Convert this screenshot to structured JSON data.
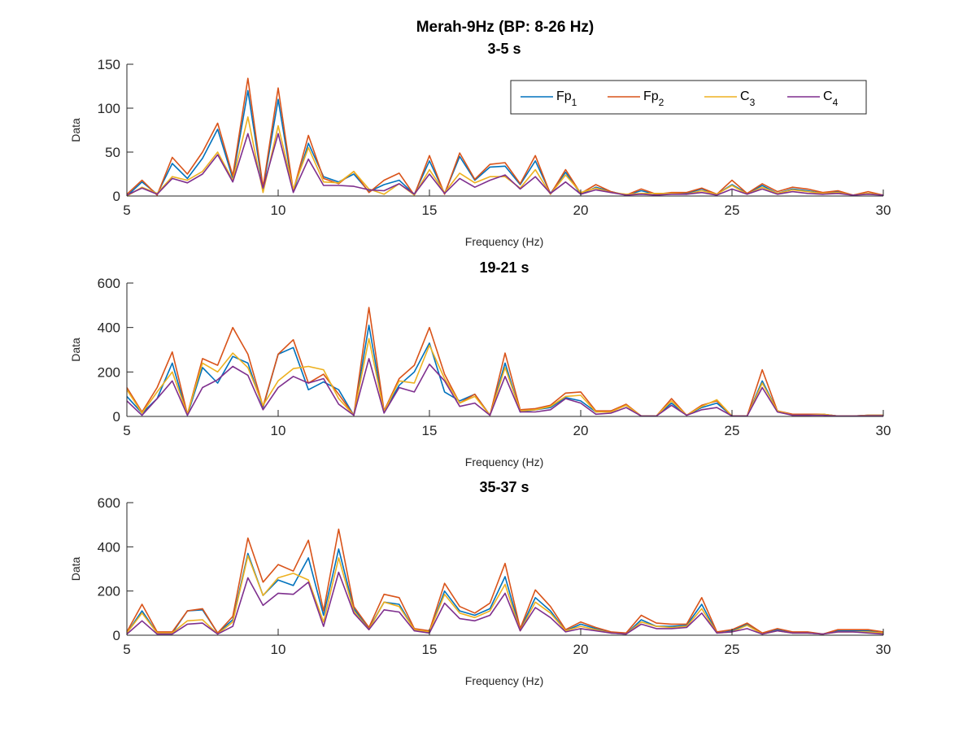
{
  "figure_title": "Merah-9Hz (BP: 8-26 Hz)",
  "legend": [
    {
      "base": "Fp",
      "sub": "1",
      "color": "#0072BD"
    },
    {
      "base": "Fp",
      "sub": "2",
      "color": "#D95319"
    },
    {
      "base": "C",
      "sub": "3",
      "color": "#EDB120"
    },
    {
      "base": "C",
      "sub": "4",
      "color": "#7E2F8E"
    }
  ],
  "legend_position": "top-right of first panel",
  "chart_data": [
    {
      "type": "line",
      "title": "3-5 s",
      "xlabel": "Frequency (Hz)",
      "ylabel": "Data",
      "xlim": [
        5,
        30
      ],
      "ylim": [
        0,
        150
      ],
      "xticks": [
        5,
        10,
        15,
        20,
        25,
        30
      ],
      "yticks": [
        0,
        50,
        100,
        150
      ],
      "grid": false,
      "x": [
        5,
        5.5,
        6,
        6.5,
        7,
        7.5,
        8,
        8.5,
        9,
        9.5,
        10,
        10.5,
        11,
        11.5,
        12,
        12.5,
        13,
        13.5,
        14,
        14.5,
        15,
        15.5,
        16,
        16.5,
        17,
        17.5,
        18,
        18.5,
        19,
        19.5,
        20,
        20.5,
        21,
        21.5,
        22,
        22.5,
        23,
        23.5,
        24,
        24.5,
        25,
        25.5,
        26,
        26.5,
        27,
        27.5,
        28,
        28.5,
        29,
        29.5,
        30
      ],
      "series": [
        {
          "name": "Fp1",
          "values": [
            0,
            16,
            2,
            37,
            20,
            43,
            76,
            20,
            120,
            8,
            110,
            5,
            60,
            22,
            16,
            25,
            5,
            13,
            18,
            2,
            40,
            3,
            45,
            18,
            33,
            34,
            13,
            40,
            3,
            27,
            2,
            10,
            5,
            1,
            6,
            2,
            3,
            3,
            8,
            2,
            13,
            3,
            12,
            3,
            8,
            6,
            3,
            5,
            1,
            3,
            1
          ]
        },
        {
          "name": "Fp2",
          "values": [
            2,
            18,
            1,
            44,
            25,
            50,
            83,
            23,
            134,
            10,
            123,
            6,
            69,
            20,
            14,
            28,
            4,
            18,
            26,
            1,
            46,
            2,
            49,
            19,
            36,
            38,
            14,
            46,
            2,
            30,
            3,
            13,
            5,
            1,
            8,
            2,
            4,
            4,
            9,
            2,
            18,
            3,
            14,
            5,
            10,
            8,
            4,
            6,
            1,
            5,
            1
          ]
        },
        {
          "name": "C3",
          "values": [
            0,
            10,
            3,
            22,
            18,
            28,
            50,
            18,
            90,
            4,
            80,
            8,
            55,
            16,
            15,
            28,
            8,
            2,
            14,
            1,
            30,
            4,
            26,
            15,
            22,
            22,
            9,
            30,
            2,
            24,
            4,
            9,
            4,
            2,
            3,
            3,
            3,
            2,
            6,
            2,
            12,
            2,
            10,
            3,
            7,
            5,
            3,
            4,
            1,
            3,
            1
          ]
        },
        {
          "name": "C4",
          "values": [
            1,
            9,
            2,
            20,
            15,
            25,
            47,
            16,
            71,
            9,
            71,
            4,
            42,
            12,
            12,
            11,
            7,
            6,
            14,
            2,
            25,
            3,
            20,
            10,
            18,
            24,
            8,
            22,
            3,
            16,
            2,
            7,
            4,
            1,
            2,
            1,
            2,
            2,
            4,
            1,
            8,
            2,
            8,
            2,
            5,
            3,
            2,
            3,
            1,
            2,
            1
          ]
        }
      ]
    },
    {
      "type": "line",
      "title": "19-21 s",
      "xlabel": "Frequency (Hz)",
      "ylabel": "Data",
      "xlim": [
        5,
        30
      ],
      "ylim": [
        0,
        600
      ],
      "xticks": [
        5,
        10,
        15,
        20,
        25,
        30
      ],
      "yticks": [
        0,
        200,
        400,
        600
      ],
      "grid": false,
      "x": [
        5,
        5.5,
        6,
        6.5,
        7,
        7.5,
        8,
        8.5,
        9,
        9.5,
        10,
        10.5,
        11,
        11.5,
        12,
        12.5,
        13,
        13.5,
        14,
        14.5,
        15,
        15.5,
        16,
        16.5,
        17,
        17.5,
        18,
        18.5,
        19,
        19.5,
        20,
        20.5,
        21,
        21.5,
        22,
        22.5,
        23,
        23.5,
        24,
        24.5,
        25,
        25.5,
        26,
        26.5,
        27,
        27.5,
        28,
        28.5,
        29,
        29.5,
        30
      ],
      "series": [
        {
          "name": "Fp1",
          "values": [
            90,
            15,
            80,
            240,
            5,
            220,
            150,
            270,
            240,
            40,
            280,
            310,
            120,
            155,
            120,
            5,
            410,
            20,
            140,
            200,
            330,
            110,
            70,
            100,
            5,
            240,
            20,
            30,
            40,
            85,
            70,
            20,
            25,
            50,
            2,
            2,
            60,
            5,
            40,
            60,
            2,
            2,
            160,
            25,
            5,
            5,
            10,
            2,
            2,
            5,
            5
          ]
        },
        {
          "name": "Fp2",
          "values": [
            130,
            20,
            130,
            290,
            10,
            260,
            230,
            400,
            280,
            45,
            280,
            345,
            150,
            190,
            100,
            5,
            490,
            25,
            170,
            230,
            400,
            190,
            60,
            100,
            5,
            285,
            30,
            35,
            50,
            105,
            110,
            25,
            25,
            55,
            2,
            2,
            80,
            5,
            50,
            70,
            2,
            2,
            210,
            25,
            10,
            10,
            10,
            2,
            2,
            5,
            5
          ]
        },
        {
          "name": "C3",
          "values": [
            120,
            15,
            110,
            200,
            10,
            240,
            200,
            285,
            220,
            50,
            160,
            215,
            225,
            210,
            80,
            5,
            350,
            20,
            160,
            150,
            320,
            170,
            60,
            90,
            5,
            220,
            25,
            30,
            45,
            90,
            95,
            20,
            20,
            50,
            2,
            2,
            70,
            5,
            45,
            75,
            2,
            2,
            150,
            25,
            5,
            5,
            10,
            2,
            2,
            5,
            5
          ]
        },
        {
          "name": "C4",
          "values": [
            70,
            5,
            80,
            160,
            5,
            130,
            165,
            225,
            185,
            30,
            130,
            180,
            150,
            170,
            55,
            5,
            260,
            15,
            130,
            110,
            235,
            160,
            45,
            60,
            5,
            180,
            20,
            20,
            30,
            80,
            60,
            10,
            15,
            40,
            2,
            2,
            50,
            5,
            30,
            40,
            2,
            2,
            130,
            20,
            5,
            5,
            5,
            2,
            2,
            3,
            3
          ]
        }
      ]
    },
    {
      "type": "line",
      "title": "35-37 s",
      "xlabel": "Frequency (Hz)",
      "ylabel": "Data",
      "xlim": [
        5,
        30
      ],
      "ylim": [
        0,
        600
      ],
      "xticks": [
        5,
        10,
        15,
        20,
        25,
        30
      ],
      "yticks": [
        0,
        200,
        400,
        600
      ],
      "grid": false,
      "x": [
        5,
        5.5,
        6,
        6.5,
        7,
        7.5,
        8,
        8.5,
        9,
        9.5,
        10,
        10.5,
        11,
        11.5,
        12,
        12.5,
        13,
        13.5,
        14,
        14.5,
        15,
        15.5,
        16,
        16.5,
        17,
        17.5,
        18,
        18.5,
        19,
        19.5,
        20,
        20.5,
        21,
        21.5,
        22,
        22.5,
        23,
        23.5,
        24,
        24.5,
        25,
        25.5,
        26,
        26.5,
        27,
        27.5,
        28,
        28.5,
        29,
        29.5,
        30
      ],
      "series": [
        {
          "name": "Fp1",
          "values": [
            10,
            110,
            10,
            10,
            110,
            115,
            10,
            70,
            370,
            180,
            250,
            225,
            350,
            90,
            390,
            120,
            30,
            150,
            140,
            25,
            15,
            200,
            110,
            90,
            120,
            265,
            25,
            170,
            110,
            20,
            50,
            30,
            10,
            5,
            70,
            40,
            40,
            45,
            140,
            10,
            20,
            50,
            5,
            25,
            10,
            10,
            5,
            20,
            20,
            20,
            10
          ]
        },
        {
          "name": "Fp2",
          "values": [
            15,
            140,
            15,
            15,
            110,
            120,
            10,
            85,
            440,
            240,
            320,
            290,
            430,
            110,
            480,
            130,
            35,
            185,
            170,
            30,
            20,
            235,
            130,
            100,
            145,
            325,
            30,
            205,
            130,
            25,
            60,
            35,
            15,
            10,
            90,
            55,
            50,
            50,
            170,
            15,
            25,
            55,
            10,
            30,
            15,
            15,
            5,
            25,
            25,
            25,
            15
          ]
        },
        {
          "name": "C3",
          "values": [
            10,
            100,
            10,
            10,
            65,
            70,
            5,
            60,
            360,
            180,
            260,
            280,
            250,
            60,
            350,
            110,
            25,
            150,
            130,
            25,
            15,
            185,
            100,
            80,
            110,
            230,
            20,
            150,
            100,
            20,
            40,
            25,
            10,
            5,
            60,
            40,
            35,
            40,
            120,
            10,
            15,
            45,
            5,
            20,
            10,
            10,
            5,
            15,
            15,
            15,
            10
          ]
        },
        {
          "name": "C4",
          "values": [
            5,
            65,
            5,
            5,
            50,
            55,
            5,
            40,
            260,
            135,
            190,
            185,
            240,
            40,
            285,
            100,
            25,
            115,
            105,
            20,
            10,
            145,
            75,
            65,
            90,
            190,
            20,
            125,
            80,
            15,
            30,
            20,
            10,
            5,
            50,
            30,
            30,
            35,
            100,
            10,
            15,
            30,
            5,
            20,
            10,
            10,
            5,
            15,
            15,
            10,
            5
          ]
        }
      ]
    }
  ]
}
